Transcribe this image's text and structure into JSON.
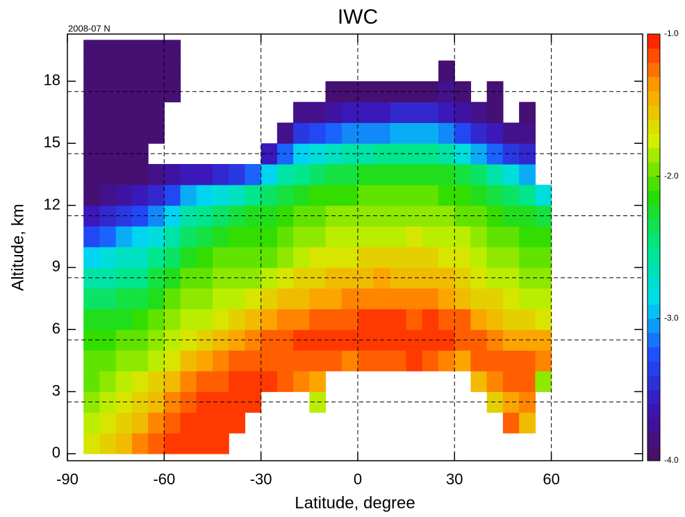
{
  "chart_data": {
    "type": "heatmap",
    "title": "IWC",
    "subtitle": "2008-07 N",
    "x_label": "Latitude, degree",
    "y_label": "Altitude, km",
    "x": [
      -82.5,
      -77.5,
      -72.5,
      -67.5,
      -62.5,
      -57.5,
      -52.5,
      -47.5,
      -42.5,
      -37.5,
      -32.5,
      -27.5,
      -22.5,
      -17.5,
      -12.5,
      -7.5,
      -2.5,
      2.5,
      7.5,
      12.5,
      17.5,
      22.5,
      27.5,
      32.5,
      37.5,
      42.5,
      47.5,
      52.5,
      57.5
    ],
    "y": [
      0.5,
      1.5,
      2.5,
      3.5,
      4.5,
      5.5,
      6.5,
      7.5,
      8.5,
      9.5,
      10.5,
      11.5,
      12.5,
      13.5,
      14.5,
      15.5,
      16.5,
      17.5,
      18.5,
      19.5
    ],
    "values": [
      [
        -1.7,
        -1.8,
        -1.9,
        -2.0,
        -2.0,
        -2.1,
        -2.2,
        -2.4,
        -2.6,
        -2.9,
        -3.3,
        -3.6,
        -3.9,
        -3.9,
        -3.9,
        -3.9,
        -3.9,
        -3.9,
        -3.9,
        -3.9
      ],
      [
        -1.6,
        -1.7,
        -1.8,
        -1.9,
        -2.0,
        -2.1,
        -2.2,
        -2.4,
        -2.6,
        -2.8,
        -3.2,
        -3.5,
        -3.8,
        -3.9,
        -3.9,
        -3.9,
        -3.9,
        -3.9,
        -3.9,
        -3.9
      ],
      [
        -1.5,
        -1.6,
        -1.7,
        -1.8,
        -1.9,
        -2.0,
        -2.2,
        -2.3,
        -2.5,
        -2.7,
        -3.0,
        -3.4,
        -3.7,
        -3.9,
        -3.9,
        -3.9,
        -3.9,
        -3.9,
        -3.9,
        -3.9
      ],
      [
        -1.3,
        -1.5,
        -1.6,
        -1.7,
        -1.9,
        -2.0,
        -2.1,
        -2.3,
        -2.5,
        -2.7,
        -2.9,
        -3.3,
        -3.6,
        -3.9,
        -3.9,
        -3.9,
        -3.9,
        -3.9,
        -3.9,
        -3.9
      ],
      [
        -1.2,
        -1.3,
        -1.5,
        -1.6,
        -1.8,
        -1.9,
        -2.0,
        -2.2,
        -2.3,
        -2.5,
        -2.8,
        -3.1,
        -3.5,
        -3.8,
        null,
        -3.9,
        -3.9,
        -3.9,
        -3.9,
        -3.9
      ],
      [
        -1.1,
        -1.2,
        -1.3,
        -1.5,
        -1.7,
        -1.8,
        -1.9,
        -2.0,
        -2.2,
        -2.4,
        -2.6,
        -2.9,
        -3.3,
        -3.7,
        null,
        null,
        null,
        -3.9,
        -3.9,
        -3.9
      ],
      [
        -1.1,
        -1.1,
        -1.2,
        -1.3,
        -1.5,
        -1.7,
        -1.8,
        -1.9,
        -2.0,
        -2.2,
        -2.4,
        -2.6,
        -3.0,
        -3.6,
        null,
        null,
        null,
        null,
        null,
        null
      ],
      [
        -1.1,
        -1.1,
        -1.1,
        -1.2,
        -1.4,
        -1.6,
        -1.8,
        -1.9,
        -2.0,
        -2.1,
        -2.3,
        -2.5,
        -2.9,
        -3.6,
        null,
        null,
        null,
        null,
        null,
        null
      ],
      [
        -1.1,
        -1.1,
        -1.1,
        -1.2,
        -1.3,
        -1.5,
        -1.7,
        -1.8,
        -1.9,
        -2.0,
        -2.2,
        -2.4,
        -2.8,
        -3.5,
        null,
        null,
        null,
        null,
        null,
        null
      ],
      [
        null,
        -1.1,
        -1.1,
        -1.1,
        -1.2,
        -1.4,
        -1.6,
        -1.8,
        -1.9,
        -2.0,
        -2.1,
        -2.3,
        -2.7,
        -3.4,
        null,
        null,
        null,
        null,
        null,
        null
      ],
      [
        null,
        null,
        -1.1,
        -1.1,
        -1.2,
        -1.3,
        -1.5,
        -1.7,
        -1.9,
        -2.0,
        -2.1,
        -2.2,
        -2.5,
        -3.2,
        null,
        null,
        null,
        null,
        null,
        null
      ],
      [
        null,
        null,
        null,
        -1.1,
        -1.2,
        -1.2,
        -1.4,
        -1.6,
        -1.8,
        -2.0,
        -2.1,
        -2.2,
        -2.4,
        -2.9,
        -3.6,
        null,
        null,
        null,
        null,
        null
      ],
      [
        null,
        null,
        null,
        -1.2,
        -1.2,
        -1.2,
        -1.3,
        -1.5,
        -1.7,
        -1.9,
        -2.0,
        -2.1,
        -2.3,
        -2.6,
        -3.2,
        -3.8,
        null,
        null,
        null,
        null
      ],
      [
        null,
        null,
        null,
        -1.3,
        -1.2,
        -1.1,
        -1.3,
        -1.5,
        -1.6,
        -1.8,
        -1.9,
        -2.0,
        -2.2,
        -2.5,
        -2.9,
        -3.4,
        -3.8,
        null,
        null,
        null
      ],
      [
        null,
        null,
        -1.8,
        -1.4,
        -1.2,
        -1.1,
        -1.2,
        -1.4,
        -1.6,
        -1.7,
        -1.9,
        -2.0,
        -2.1,
        -2.4,
        -2.8,
        -3.3,
        -3.8,
        null,
        null,
        null
      ],
      [
        null,
        null,
        null,
        null,
        -1.2,
        -1.1,
        -1.2,
        -1.4,
        -1.5,
        -1.7,
        -1.8,
        -1.9,
        -2.1,
        -2.3,
        -2.7,
        -3.2,
        -3.7,
        -3.9,
        null,
        null
      ],
      [
        null,
        null,
        null,
        null,
        -1.3,
        -1.1,
        -1.2,
        -1.3,
        -1.5,
        -1.7,
        -1.8,
        -1.9,
        -2.1,
        -2.3,
        -2.6,
        -3.1,
        -3.6,
        -3.9,
        null,
        null
      ],
      [
        null,
        null,
        null,
        null,
        -1.2,
        -1.1,
        -1.1,
        -1.3,
        -1.5,
        -1.6,
        -1.8,
        -1.9,
        -2.0,
        -2.2,
        -2.6,
        -3.1,
        -3.6,
        -3.9,
        null,
        null
      ],
      [
        null,
        null,
        null,
        null,
        -1.2,
        -1.1,
        -1.1,
        -1.3,
        -1.4,
        -1.6,
        -1.8,
        -1.9,
        -2.0,
        -2.2,
        -2.5,
        -3.1,
        -3.6,
        -3.9,
        null,
        null
      ],
      [
        null,
        null,
        null,
        null,
        -1.2,
        -1.1,
        -1.1,
        -1.3,
        -1.5,
        -1.6,
        -1.8,
        -1.9,
        -2.0,
        -2.2,
        -2.5,
        -3.0,
        -3.5,
        -3.9,
        null,
        null
      ],
      [
        null,
        null,
        null,
        null,
        -1.1,
        -1.1,
        -1.2,
        -1.3,
        -1.5,
        -1.6,
        -1.7,
        -1.9,
        -2.0,
        -2.2,
        -2.5,
        -3.0,
        -3.5,
        -3.9,
        null,
        null
      ],
      [
        null,
        null,
        null,
        null,
        -1.2,
        -1.1,
        -1.1,
        -1.3,
        -1.5,
        -1.6,
        -1.8,
        -1.9,
        -2.0,
        -2.2,
        -2.5,
        -3.0,
        -3.5,
        -3.9,
        null,
        null
      ],
      [
        null,
        null,
        null,
        null,
        -1.3,
        -1.1,
        -1.2,
        -1.4,
        -1.5,
        -1.7,
        -1.8,
        -1.9,
        -2.1,
        -2.2,
        -2.6,
        -3.1,
        -3.6,
        -3.8,
        -3.9,
        null
      ],
      [
        null,
        null,
        null,
        null,
        -1.4,
        -1.2,
        -1.2,
        -1.5,
        -1.6,
        -1.7,
        -1.8,
        -2.0,
        -2.1,
        -2.3,
        -2.8,
        -3.3,
        -3.7,
        -3.9,
        null,
        null
      ],
      [
        null,
        null,
        null,
        -1.5,
        -1.2,
        -1.2,
        -1.4,
        -1.6,
        -1.7,
        -1.8,
        -1.9,
        -2.0,
        -2.2,
        -2.4,
        -3.0,
        -3.5,
        -3.8,
        null,
        null,
        null
      ],
      [
        null,
        null,
        -1.6,
        -1.3,
        -1.2,
        -1.3,
        -1.5,
        -1.6,
        -1.8,
        -1.9,
        -2.0,
        -2.1,
        -2.3,
        -2.6,
        -3.2,
        -3.6,
        -3.9,
        -3.9,
        null,
        null
      ],
      [
        null,
        -1.2,
        -1.4,
        -1.2,
        -1.2,
        -1.4,
        -1.6,
        -1.7,
        -1.8,
        -1.9,
        -2.0,
        -2.2,
        -2.4,
        -2.8,
        -3.4,
        -3.8,
        null,
        null,
        null,
        null
      ],
      [
        null,
        -1.5,
        -1.3,
        -1.2,
        -1.2,
        -1.4,
        -1.6,
        -1.8,
        -1.9,
        -2.0,
        -2.1,
        -2.2,
        -2.5,
        -3.0,
        -3.5,
        -3.8,
        -3.9,
        null,
        null,
        null
      ],
      [
        null,
        null,
        null,
        -1.9,
        -1.3,
        -1.4,
        -1.7,
        -1.8,
        -1.9,
        -2.0,
        -2.1,
        -2.3,
        -2.8,
        null,
        null,
        null,
        null,
        null,
        null,
        null
      ]
    ],
    "xlim": [
      -90,
      88.3
    ],
    "ylim": [
      -0.34,
      20.28
    ],
    "xticks": [
      -90,
      -60,
      -30,
      0,
      30,
      60
    ],
    "yticks": [
      0,
      3,
      6,
      9,
      12,
      15,
      18
    ],
    "grid_x": [
      -60,
      -30,
      0,
      30,
      60
    ],
    "grid_y": [
      2.5,
      5.5,
      8.5,
      11.5,
      14.5,
      17.5
    ],
    "clim": [
      -4,
      -1
    ],
    "cticks": [
      {
        "value": -4,
        "label": "-4.0"
      },
      {
        "value": -3,
        "label": "-3.0"
      },
      {
        "value": -2,
        "label": "-2.0"
      },
      {
        "value": -1,
        "label": "-1.0"
      }
    ],
    "colorscale": [
      "#4a0f5c",
      "#3c14b4",
      "#1e50ff",
      "#00dcf0",
      "#00e68c",
      "#28dc00",
      "#d2f000",
      "#ffa000",
      "#ff1400"
    ]
  }
}
